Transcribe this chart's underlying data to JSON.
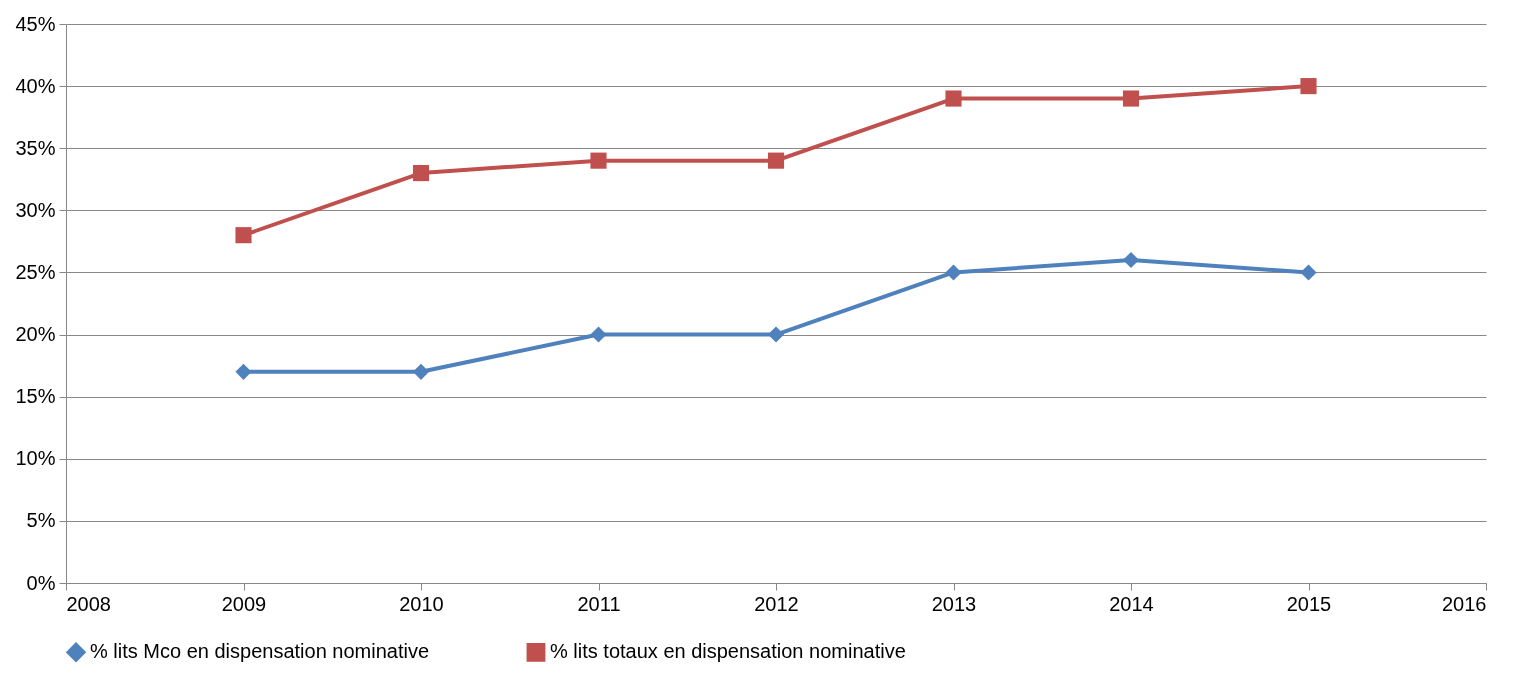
{
  "chart_data": {
    "type": "line",
    "x": [
      2009,
      2010,
      2011,
      2012,
      2013,
      2014,
      2015
    ],
    "series": [
      {
        "name": "% lits Mco en dispensation nominative",
        "color": "#4f81bd",
        "marker": "diamond",
        "values": [
          17,
          17,
          20,
          20,
          25,
          26,
          25
        ]
      },
      {
        "name": "% lits totaux en dispensation nominative",
        "color": "#c0504d",
        "marker": "square",
        "values": [
          28,
          33,
          34,
          34,
          39,
          39,
          40
        ]
      }
    ],
    "xlim": [
      2008,
      2016
    ],
    "xticks": [
      2008,
      2009,
      2010,
      2011,
      2012,
      2013,
      2014,
      2015,
      2016
    ],
    "ylim": [
      0,
      45
    ],
    "yticks": [
      {
        "value": 0,
        "label": "0%"
      },
      {
        "value": 5,
        "label": "5%"
      },
      {
        "value": 10,
        "label": "10%"
      },
      {
        "value": 15,
        "label": "15%"
      },
      {
        "value": 20,
        "label": "20%"
      },
      {
        "value": 25,
        "label": "25%"
      },
      {
        "value": 30,
        "label": "30%"
      },
      {
        "value": 35,
        "label": "35%"
      },
      {
        "value": 40,
        "label": "40%"
      },
      {
        "value": 45,
        "label": "45%"
      }
    ],
    "grid": "y",
    "legend": "bottom"
  }
}
